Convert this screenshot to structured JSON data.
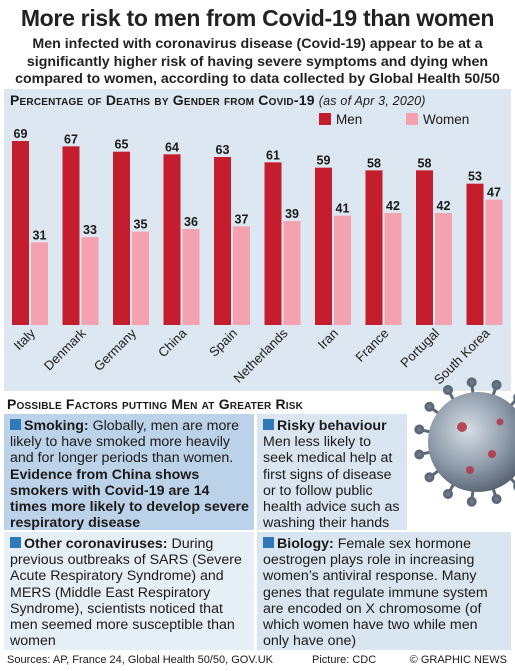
{
  "headline": "More risk to men from Covid-19 than women",
  "deck": "Men infected with coronavirus disease (Covid-19) appear to be at a significantly higher risk of having severe symptoms and dying when compared to women, according to data collected by Global Health 50/50",
  "chart_data": {
    "type": "bar",
    "title": "Percentage of Deaths by Gender from Covid-19",
    "subtitle": "(as of Apr 3, 2020)",
    "categories": [
      "Italy",
      "Denmark",
      "Germany",
      "China",
      "Spain",
      "Netherlands",
      "Iran",
      "France",
      "Portugal",
      "South Korea"
    ],
    "series": [
      {
        "name": "Men",
        "color": "#c41e2e",
        "values": [
          69,
          67,
          65,
          64,
          63,
          61,
          59,
          58,
          58,
          53
        ]
      },
      {
        "name": "Women",
        "color": "#f4a2b0",
        "values": [
          31,
          33,
          35,
          36,
          37,
          39,
          41,
          42,
          42,
          47
        ]
      }
    ],
    "ylim": [
      0,
      75
    ],
    "legend": "top-right",
    "grid": false,
    "data_labels": true
  },
  "factors": {
    "heading": "Possible Factors putting Men at Greater Risk",
    "smoking": {
      "title": "Smoking:",
      "text": "Globally, men are more likely to have smoked more heavily and for longer periods than women.",
      "emphasis": "Evidence from China shows smokers with Covid-19 are 14 times more likely to develop severe respiratory disease"
    },
    "risky": {
      "title": "Risky behaviour",
      "text": "Men less likely to seek medical help at first signs of disease or to follow public health advice such as washing their hands"
    },
    "other": {
      "title": "Other coronaviruses:",
      "text": "During previous outbreaks of SARS (Severe Acute Respiratory Syndrome) and MERS (Middle East Respiratory Syndrome), scientists noticed that men seemed more susceptible than women"
    },
    "biology": {
      "title": "Biology:",
      "text": "Female sex hormone oestrogen plays role in increasing women’s antiviral response. Many genes that regulate immune system are encoded on X chromosome (of which women have two while men only have one)"
    }
  },
  "footer": {
    "sources": "Sources: AP, France 24, Global Health 50/50, GOV.UK",
    "picture": "Picture: CDC",
    "credit": "© GRAPHIC NEWS"
  },
  "colors": {
    "accent_blue": "#2f79b8",
    "panel_bg": "#dce7f1",
    "men": "#c41e2e",
    "women": "#f4a2b0"
  }
}
